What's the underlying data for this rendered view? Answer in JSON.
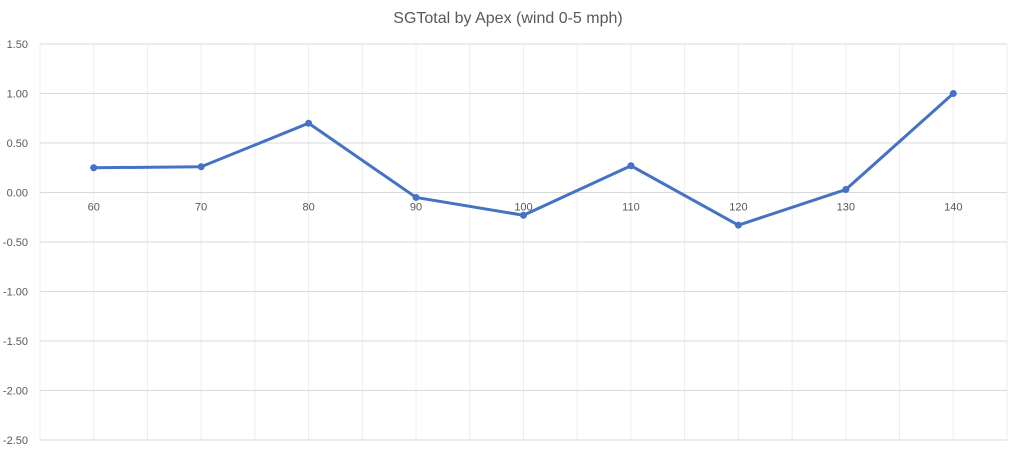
{
  "chart_data": {
    "type": "line",
    "title": "SGTotal by Apex (wind 0-5 mph)",
    "xlabel": "",
    "ylabel": "",
    "categories": [
      "60",
      "70",
      "80",
      "90",
      "100",
      "110",
      "120",
      "130",
      "140"
    ],
    "series": [
      {
        "values": [
          0.25,
          0.26,
          0.7,
          -0.05,
          -0.23,
          0.27,
          -0.33,
          0.03,
          1.0
        ]
      }
    ],
    "ylim": [
      -2.5,
      1.5
    ],
    "yticks": [
      "1.50",
      "1.00",
      "0.50",
      "0.00",
      "-0.50",
      "-1.00",
      "-1.50",
      "-2.00",
      "-2.50"
    ],
    "grid": true,
    "legend": "none",
    "colors": {
      "line": "#4472C4",
      "grid": "#d9d9d9",
      "minor_grid": "#eeeeee",
      "text": "#595959"
    }
  }
}
